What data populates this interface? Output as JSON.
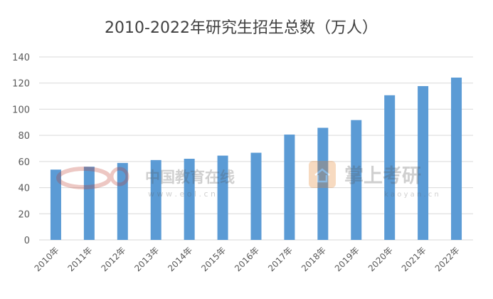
{
  "chart_data": {
    "type": "bar",
    "title": "2010-2022年研究生招生总数（万人）",
    "xlabel": "",
    "ylabel": "",
    "ylim": [
      0,
      140
    ],
    "yticks": [
      0,
      20,
      40,
      60,
      80,
      100,
      120,
      140
    ],
    "grid": true,
    "legend": "none",
    "categories": [
      "2010年",
      "2011年",
      "2012年",
      "2013年",
      "2014年",
      "2015年",
      "2016年",
      "2017年",
      "2018年",
      "2019年",
      "2020年",
      "2021年",
      "2022年"
    ],
    "values": [
      53.8,
      56.0,
      58.9,
      61.1,
      62.1,
      64.5,
      66.7,
      80.6,
      85.8,
      91.7,
      110.7,
      117.7,
      124.2
    ],
    "bar_color": "#5b9bd5",
    "grid_color": "#d9d9d9"
  },
  "watermarks": [
    {
      "text": "中国教育在线",
      "subtext": "w w w . e o l . c n"
    },
    {
      "text": "掌上考研",
      "subtext": "k a o y a n . c n"
    }
  ]
}
